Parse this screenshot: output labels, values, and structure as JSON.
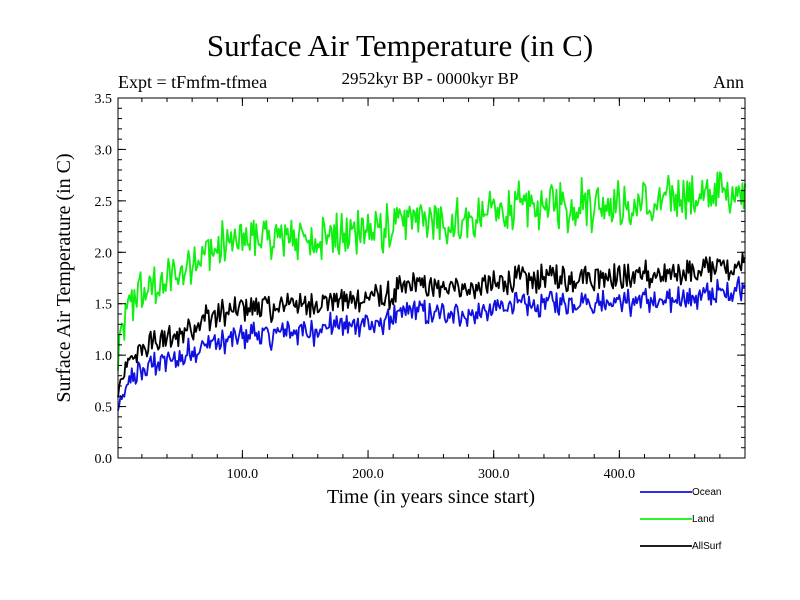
{
  "header": {
    "title": "Surface Air Temperature (in C)",
    "experiment": "Expt = tFmfm-tfmea",
    "period": "2952kyr BP - 0000kyr BP",
    "season": "Ann"
  },
  "chart_data": {
    "type": "line",
    "title": "Surface Air Temperature (in C)",
    "xlabel": "Time (in years since start)",
    "ylabel": "Surface Air Temperature (in C)",
    "xlim": [
      1,
      500
    ],
    "ylim": [
      0.0,
      3.5
    ],
    "x_ticks": [
      100,
      200,
      300,
      400
    ],
    "x_tick_labels": [
      "100.0",
      "200.0",
      "300.0",
      "400.0"
    ],
    "y_ticks": [
      0.0,
      0.5,
      1.0,
      1.5,
      2.0,
      2.5,
      3.0,
      3.5
    ],
    "y_tick_labels": [
      "0.0",
      "0.5",
      "1.0",
      "1.5",
      "2.0",
      "2.5",
      "3.0",
      "3.5"
    ],
    "grid": false,
    "legend_position": "bottom-right",
    "series": [
      {
        "name": "Ocean",
        "color": "#1010e0",
        "x": [
          1,
          10,
          20,
          30,
          40,
          50,
          60,
          70,
          80,
          90,
          100,
          110,
          120,
          130,
          140,
          150,
          160,
          170,
          180,
          190,
          200,
          210,
          220,
          230,
          240,
          250,
          260,
          270,
          280,
          290,
          300,
          310,
          320,
          330,
          340,
          350,
          360,
          370,
          380,
          390,
          400,
          410,
          420,
          430,
          440,
          450,
          460,
          470,
          480,
          490,
          500
        ],
        "values": [
          0.45,
          0.75,
          0.85,
          0.92,
          0.95,
          0.98,
          1.05,
          1.1,
          1.12,
          1.15,
          1.18,
          1.2,
          1.18,
          1.22,
          1.25,
          1.2,
          1.25,
          1.3,
          1.28,
          1.3,
          1.32,
          1.3,
          1.35,
          1.4,
          1.45,
          1.38,
          1.4,
          1.45,
          1.35,
          1.42,
          1.45,
          1.48,
          1.5,
          1.45,
          1.5,
          1.52,
          1.48,
          1.55,
          1.5,
          1.55,
          1.52,
          1.5,
          1.55,
          1.5,
          1.52,
          1.58,
          1.55,
          1.6,
          1.62,
          1.6,
          1.7
        ]
      },
      {
        "name": "Land",
        "color": "#10f010",
        "x": [
          1,
          10,
          20,
          30,
          40,
          50,
          60,
          70,
          80,
          90,
          100,
          110,
          120,
          130,
          140,
          150,
          160,
          170,
          180,
          190,
          200,
          210,
          220,
          230,
          240,
          250,
          260,
          270,
          280,
          290,
          300,
          310,
          320,
          330,
          340,
          350,
          360,
          370,
          380,
          390,
          400,
          410,
          420,
          430,
          440,
          450,
          460,
          470,
          480,
          490,
          500
        ],
        "values": [
          1.0,
          1.5,
          1.6,
          1.65,
          1.7,
          1.8,
          1.9,
          2.0,
          2.05,
          2.1,
          2.1,
          2.15,
          2.1,
          2.15,
          2.2,
          2.1,
          2.15,
          2.2,
          2.15,
          2.2,
          2.25,
          2.2,
          2.25,
          2.3,
          2.35,
          2.3,
          2.25,
          2.35,
          2.3,
          2.35,
          2.4,
          2.4,
          2.45,
          2.4,
          2.45,
          2.5,
          2.4,
          2.5,
          2.45,
          2.5,
          2.45,
          2.4,
          2.5,
          2.45,
          2.5,
          2.55,
          2.5,
          2.55,
          2.6,
          2.6,
          2.65
        ]
      },
      {
        "name": "AllSurf",
        "color": "#000000",
        "x": [
          1,
          10,
          20,
          30,
          40,
          50,
          60,
          70,
          80,
          90,
          100,
          110,
          120,
          130,
          140,
          150,
          160,
          170,
          180,
          190,
          200,
          210,
          220,
          230,
          240,
          250,
          260,
          270,
          280,
          290,
          300,
          310,
          320,
          330,
          340,
          350,
          360,
          370,
          380,
          390,
          400,
          410,
          420,
          430,
          440,
          450,
          460,
          470,
          480,
          490,
          500
        ],
        "values": [
          0.65,
          0.95,
          1.05,
          1.12,
          1.15,
          1.2,
          1.28,
          1.35,
          1.38,
          1.42,
          1.45,
          1.48,
          1.45,
          1.48,
          1.52,
          1.45,
          1.5,
          1.55,
          1.52,
          1.55,
          1.58,
          1.55,
          1.6,
          1.65,
          1.7,
          1.63,
          1.65,
          1.7,
          1.6,
          1.67,
          1.7,
          1.72,
          1.75,
          1.7,
          1.75,
          1.78,
          1.72,
          1.8,
          1.75,
          1.8,
          1.77,
          1.75,
          1.8,
          1.75,
          1.77,
          1.83,
          1.8,
          1.85,
          1.87,
          1.86,
          1.95
        ]
      }
    ]
  }
}
